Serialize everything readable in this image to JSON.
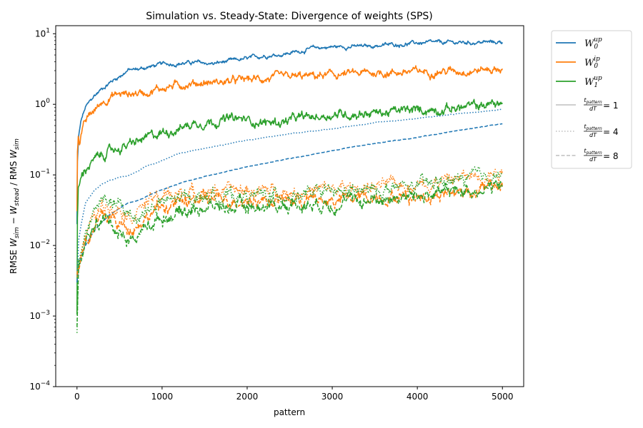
{
  "chart_data": {
    "type": "line",
    "title": "Simulation vs. Steady-State: Divergence of weights (SPS)",
    "xlabel": "pattern",
    "ylabel_parts": {
      "pre": "RMSE ",
      "w1": "W",
      "w1_sub": "sim",
      "mid": " − ",
      "w2": "W",
      "w2_sub": "stead",
      "post": " / RMS ",
      "w3": "W",
      "w3_sub": "sim"
    },
    "xlim": [
      -250,
      5250
    ],
    "ylim": [
      0.0001,
      13
    ],
    "yscale": "log",
    "x_ticks": [
      0,
      1000,
      2000,
      3000,
      4000,
      5000
    ],
    "x_tick_labels": [
      "0",
      "1000",
      "2000",
      "3000",
      "4000",
      "5000"
    ],
    "y_ticks": [
      {
        "value": 0.0001,
        "base": "10",
        "exp": "−4"
      },
      {
        "value": 0.001,
        "base": "10",
        "exp": "−3"
      },
      {
        "value": 0.01,
        "base": "10",
        "exp": "−2"
      },
      {
        "value": 0.1,
        "base": "10",
        "exp": "−1"
      },
      {
        "value": 1,
        "base": "10",
        "exp": "0"
      },
      {
        "value": 10,
        "base": "10",
        "exp": "1"
      }
    ],
    "grid": false,
    "legend_placement": "outside-right",
    "legend": [
      {
        "kind": "series",
        "main": "W",
        "sub": "0",
        "sup": "up",
        "color": "#1f77b4",
        "dash": "solid"
      },
      {
        "kind": "series",
        "main": "W",
        "sub": "0",
        "sup": "ip",
        "color": "#ff7f0e",
        "dash": "solid"
      },
      {
        "kind": "series",
        "main": "W",
        "sub": "1",
        "sup": "up",
        "color": "#2ca02c",
        "dash": "solid"
      },
      {
        "kind": "style",
        "num": "t",
        "num_sub": "pattern",
        "den": "dT",
        "value": " = 1",
        "color": "#c8c8c8",
        "dash": "solid"
      },
      {
        "kind": "style",
        "num": "t",
        "num_sub": "pattern",
        "den": "dT",
        "value": " = 4",
        "color": "#c8c8c8",
        "dash": "dotted"
      },
      {
        "kind": "style",
        "num": "t",
        "num_sub": "pattern",
        "den": "dT",
        "value": " = 8",
        "color": "#c8c8c8",
        "dash": "dashed"
      }
    ],
    "series": [
      {
        "weight": "W0up",
        "ratio": 1,
        "color": "#1f77b4",
        "dash": "solid",
        "noise": 0.03,
        "points": [
          [
            0,
            0.02
          ],
          [
            5,
            0.15
          ],
          [
            20,
            0.35
          ],
          [
            50,
            0.6
          ],
          [
            100,
            0.9
          ],
          [
            200,
            1.3
          ],
          [
            300,
            1.7
          ],
          [
            400,
            2.1
          ],
          [
            500,
            2.5
          ],
          [
            600,
            3.05
          ],
          [
            700,
            3.1
          ],
          [
            800,
            3.3
          ],
          [
            1000,
            3.7
          ],
          [
            1200,
            3.8
          ],
          [
            1400,
            3.9
          ],
          [
            1600,
            3.75
          ],
          [
            1800,
            4.1
          ],
          [
            2000,
            4.4
          ],
          [
            2200,
            4.9
          ],
          [
            2400,
            5.1
          ],
          [
            2600,
            5.6
          ],
          [
            2800,
            6.3
          ],
          [
            3000,
            6.5
          ],
          [
            3200,
            6.6
          ],
          [
            3400,
            6.6
          ],
          [
            3600,
            6.9
          ],
          [
            3800,
            7.1
          ],
          [
            4000,
            7.4
          ],
          [
            4200,
            7.4
          ],
          [
            4400,
            7.5
          ],
          [
            4600,
            7.5
          ],
          [
            4800,
            7.6
          ],
          [
            5000,
            7.55
          ]
        ]
      },
      {
        "weight": "W0ip",
        "ratio": 1,
        "color": "#ff7f0e",
        "dash": "solid",
        "noise": 0.06,
        "points": [
          [
            0,
            0.03
          ],
          [
            5,
            0.2
          ],
          [
            15,
            0.35
          ],
          [
            30,
            0.3
          ],
          [
            60,
            0.45
          ],
          [
            100,
            0.55
          ],
          [
            150,
            0.7
          ],
          [
            200,
            0.8
          ],
          [
            300,
            1.1
          ],
          [
            400,
            1.3
          ],
          [
            500,
            1.4
          ],
          [
            600,
            1.4
          ],
          [
            700,
            1.45
          ],
          [
            800,
            1.5
          ],
          [
            900,
            1.6
          ],
          [
            1000,
            1.7
          ],
          [
            1200,
            1.9
          ],
          [
            1400,
            2.0
          ],
          [
            1600,
            2.05
          ],
          [
            1800,
            2.1
          ],
          [
            2000,
            2.25
          ],
          [
            2500,
            2.4
          ],
          [
            3000,
            2.6
          ],
          [
            3500,
            2.8
          ],
          [
            4000,
            2.9
          ],
          [
            4500,
            3.0
          ],
          [
            5000,
            3.2
          ]
        ]
      },
      {
        "weight": "W1up",
        "ratio": 1,
        "color": "#2ca02c",
        "dash": "solid",
        "noise": 0.07,
        "points": [
          [
            0,
            0.001
          ],
          [
            5,
            0.02
          ],
          [
            15,
            0.06
          ],
          [
            40,
            0.08
          ],
          [
            80,
            0.11
          ],
          [
            120,
            0.13
          ],
          [
            200,
            0.16
          ],
          [
            300,
            0.19
          ],
          [
            400,
            0.22
          ],
          [
            500,
            0.24
          ],
          [
            600,
            0.26
          ],
          [
            700,
            0.29
          ],
          [
            800,
            0.32
          ],
          [
            900,
            0.36
          ],
          [
            1000,
            0.4
          ],
          [
            1200,
            0.46
          ],
          [
            1400,
            0.55
          ],
          [
            1600,
            0.58
          ],
          [
            1800,
            0.62
          ],
          [
            2000,
            0.6
          ],
          [
            2200,
            0.55
          ],
          [
            2400,
            0.56
          ],
          [
            2600,
            0.63
          ],
          [
            2800,
            0.66
          ],
          [
            3000,
            0.72
          ],
          [
            3200,
            0.73
          ],
          [
            3400,
            0.76
          ],
          [
            3600,
            0.76
          ],
          [
            3800,
            0.8
          ],
          [
            4000,
            0.82
          ],
          [
            4200,
            0.85
          ],
          [
            4400,
            0.88
          ],
          [
            4600,
            0.92
          ],
          [
            4800,
            0.98
          ],
          [
            5000,
            1.05
          ]
        ]
      },
      {
        "weight": "W0up",
        "ratio": 4,
        "color": "#1f77b4",
        "dash": "dotted",
        "noise": 0.005,
        "points": [
          [
            0,
            0.003
          ],
          [
            20,
            0.012
          ],
          [
            50,
            0.02
          ],
          [
            100,
            0.04
          ],
          [
            200,
            0.06
          ],
          [
            300,
            0.075
          ],
          [
            400,
            0.085
          ],
          [
            500,
            0.093
          ],
          [
            600,
            0.097
          ],
          [
            700,
            0.11
          ],
          [
            800,
            0.13
          ],
          [
            1000,
            0.16
          ],
          [
            1200,
            0.2
          ],
          [
            1500,
            0.24
          ],
          [
            2000,
            0.31
          ],
          [
            2500,
            0.38
          ],
          [
            3000,
            0.45
          ],
          [
            3500,
            0.55
          ],
          [
            4000,
            0.63
          ],
          [
            4500,
            0.74
          ],
          [
            5000,
            0.85
          ]
        ]
      },
      {
        "weight": "W0up",
        "ratio": 8,
        "color": "#1f77b4",
        "dash": "dashed",
        "noise": 0.005,
        "points": [
          [
            0,
            0.003
          ],
          [
            30,
            0.006
          ],
          [
            100,
            0.01
          ],
          [
            200,
            0.016
          ],
          [
            300,
            0.022
          ],
          [
            400,
            0.028
          ],
          [
            500,
            0.034
          ],
          [
            600,
            0.04
          ],
          [
            700,
            0.043
          ],
          [
            800,
            0.048
          ],
          [
            1000,
            0.062
          ],
          [
            1200,
            0.075
          ],
          [
            1500,
            0.095
          ],
          [
            2000,
            0.13
          ],
          [
            2500,
            0.17
          ],
          [
            3000,
            0.22
          ],
          [
            3500,
            0.28
          ],
          [
            4000,
            0.34
          ],
          [
            4500,
            0.43
          ],
          [
            5000,
            0.53
          ]
        ]
      },
      {
        "weight": "W0ip",
        "ratio": 4,
        "color": "#ff7f0e",
        "dash": "dotted",
        "noise": 0.1,
        "points": [
          [
            0,
            0.004
          ],
          [
            50,
            0.01
          ],
          [
            100,
            0.015
          ],
          [
            200,
            0.025
          ],
          [
            300,
            0.035
          ],
          [
            400,
            0.038
          ],
          [
            500,
            0.036
          ],
          [
            600,
            0.03
          ],
          [
            650,
            0.027
          ],
          [
            700,
            0.032
          ],
          [
            800,
            0.04
          ],
          [
            1000,
            0.05
          ],
          [
            1200,
            0.055
          ],
          [
            1500,
            0.058
          ],
          [
            2000,
            0.06
          ],
          [
            2500,
            0.058
          ],
          [
            3000,
            0.062
          ],
          [
            3500,
            0.068
          ],
          [
            4000,
            0.075
          ],
          [
            4500,
            0.09
          ],
          [
            5000,
            0.115
          ]
        ]
      },
      {
        "weight": "W0ip",
        "ratio": 8,
        "color": "#ff7f0e",
        "dash": "dashed",
        "noise": 0.1,
        "points": [
          [
            0,
            0.004
          ],
          [
            50,
            0.008
          ],
          [
            100,
            0.012
          ],
          [
            200,
            0.018
          ],
          [
            300,
            0.025
          ],
          [
            400,
            0.025
          ],
          [
            500,
            0.02
          ],
          [
            600,
            0.018
          ],
          [
            700,
            0.02
          ],
          [
            800,
            0.025
          ],
          [
            1000,
            0.035
          ],
          [
            1200,
            0.04
          ],
          [
            1500,
            0.045
          ],
          [
            2000,
            0.045
          ],
          [
            2500,
            0.045
          ],
          [
            3000,
            0.043
          ],
          [
            3500,
            0.05
          ],
          [
            4000,
            0.05
          ],
          [
            4500,
            0.058
          ],
          [
            5000,
            0.07
          ]
        ]
      },
      {
        "weight": "W1up",
        "ratio": 4,
        "color": "#2ca02c",
        "dash": "dotted",
        "noise": 0.1,
        "points": [
          [
            0,
            0.0006
          ],
          [
            20,
            0.006
          ],
          [
            100,
            0.015
          ],
          [
            200,
            0.03
          ],
          [
            300,
            0.045
          ],
          [
            400,
            0.042
          ],
          [
            500,
            0.035
          ],
          [
            600,
            0.028
          ],
          [
            700,
            0.025
          ],
          [
            800,
            0.03
          ],
          [
            1000,
            0.04
          ],
          [
            1200,
            0.045
          ],
          [
            1500,
            0.05
          ],
          [
            2000,
            0.05
          ],
          [
            2500,
            0.052
          ],
          [
            3000,
            0.055
          ],
          [
            3500,
            0.06
          ],
          [
            4000,
            0.07
          ],
          [
            4500,
            0.085
          ],
          [
            5000,
            0.105
          ]
        ]
      },
      {
        "weight": "W1up",
        "ratio": 8,
        "color": "#2ca02c",
        "dash": "dashed",
        "noise": 0.1,
        "points": [
          [
            0,
            0.0006
          ],
          [
            20,
            0.005
          ],
          [
            100,
            0.01
          ],
          [
            200,
            0.018
          ],
          [
            300,
            0.024
          ],
          [
            400,
            0.022
          ],
          [
            500,
            0.015
          ],
          [
            600,
            0.012
          ],
          [
            700,
            0.013
          ],
          [
            800,
            0.018
          ],
          [
            1000,
            0.025
          ],
          [
            1200,
            0.03
          ],
          [
            1500,
            0.035
          ],
          [
            2000,
            0.035
          ],
          [
            2500,
            0.038
          ],
          [
            3000,
            0.04
          ],
          [
            3500,
            0.045
          ],
          [
            4000,
            0.05
          ],
          [
            4500,
            0.06
          ],
          [
            5000,
            0.068
          ]
        ]
      }
    ]
  }
}
